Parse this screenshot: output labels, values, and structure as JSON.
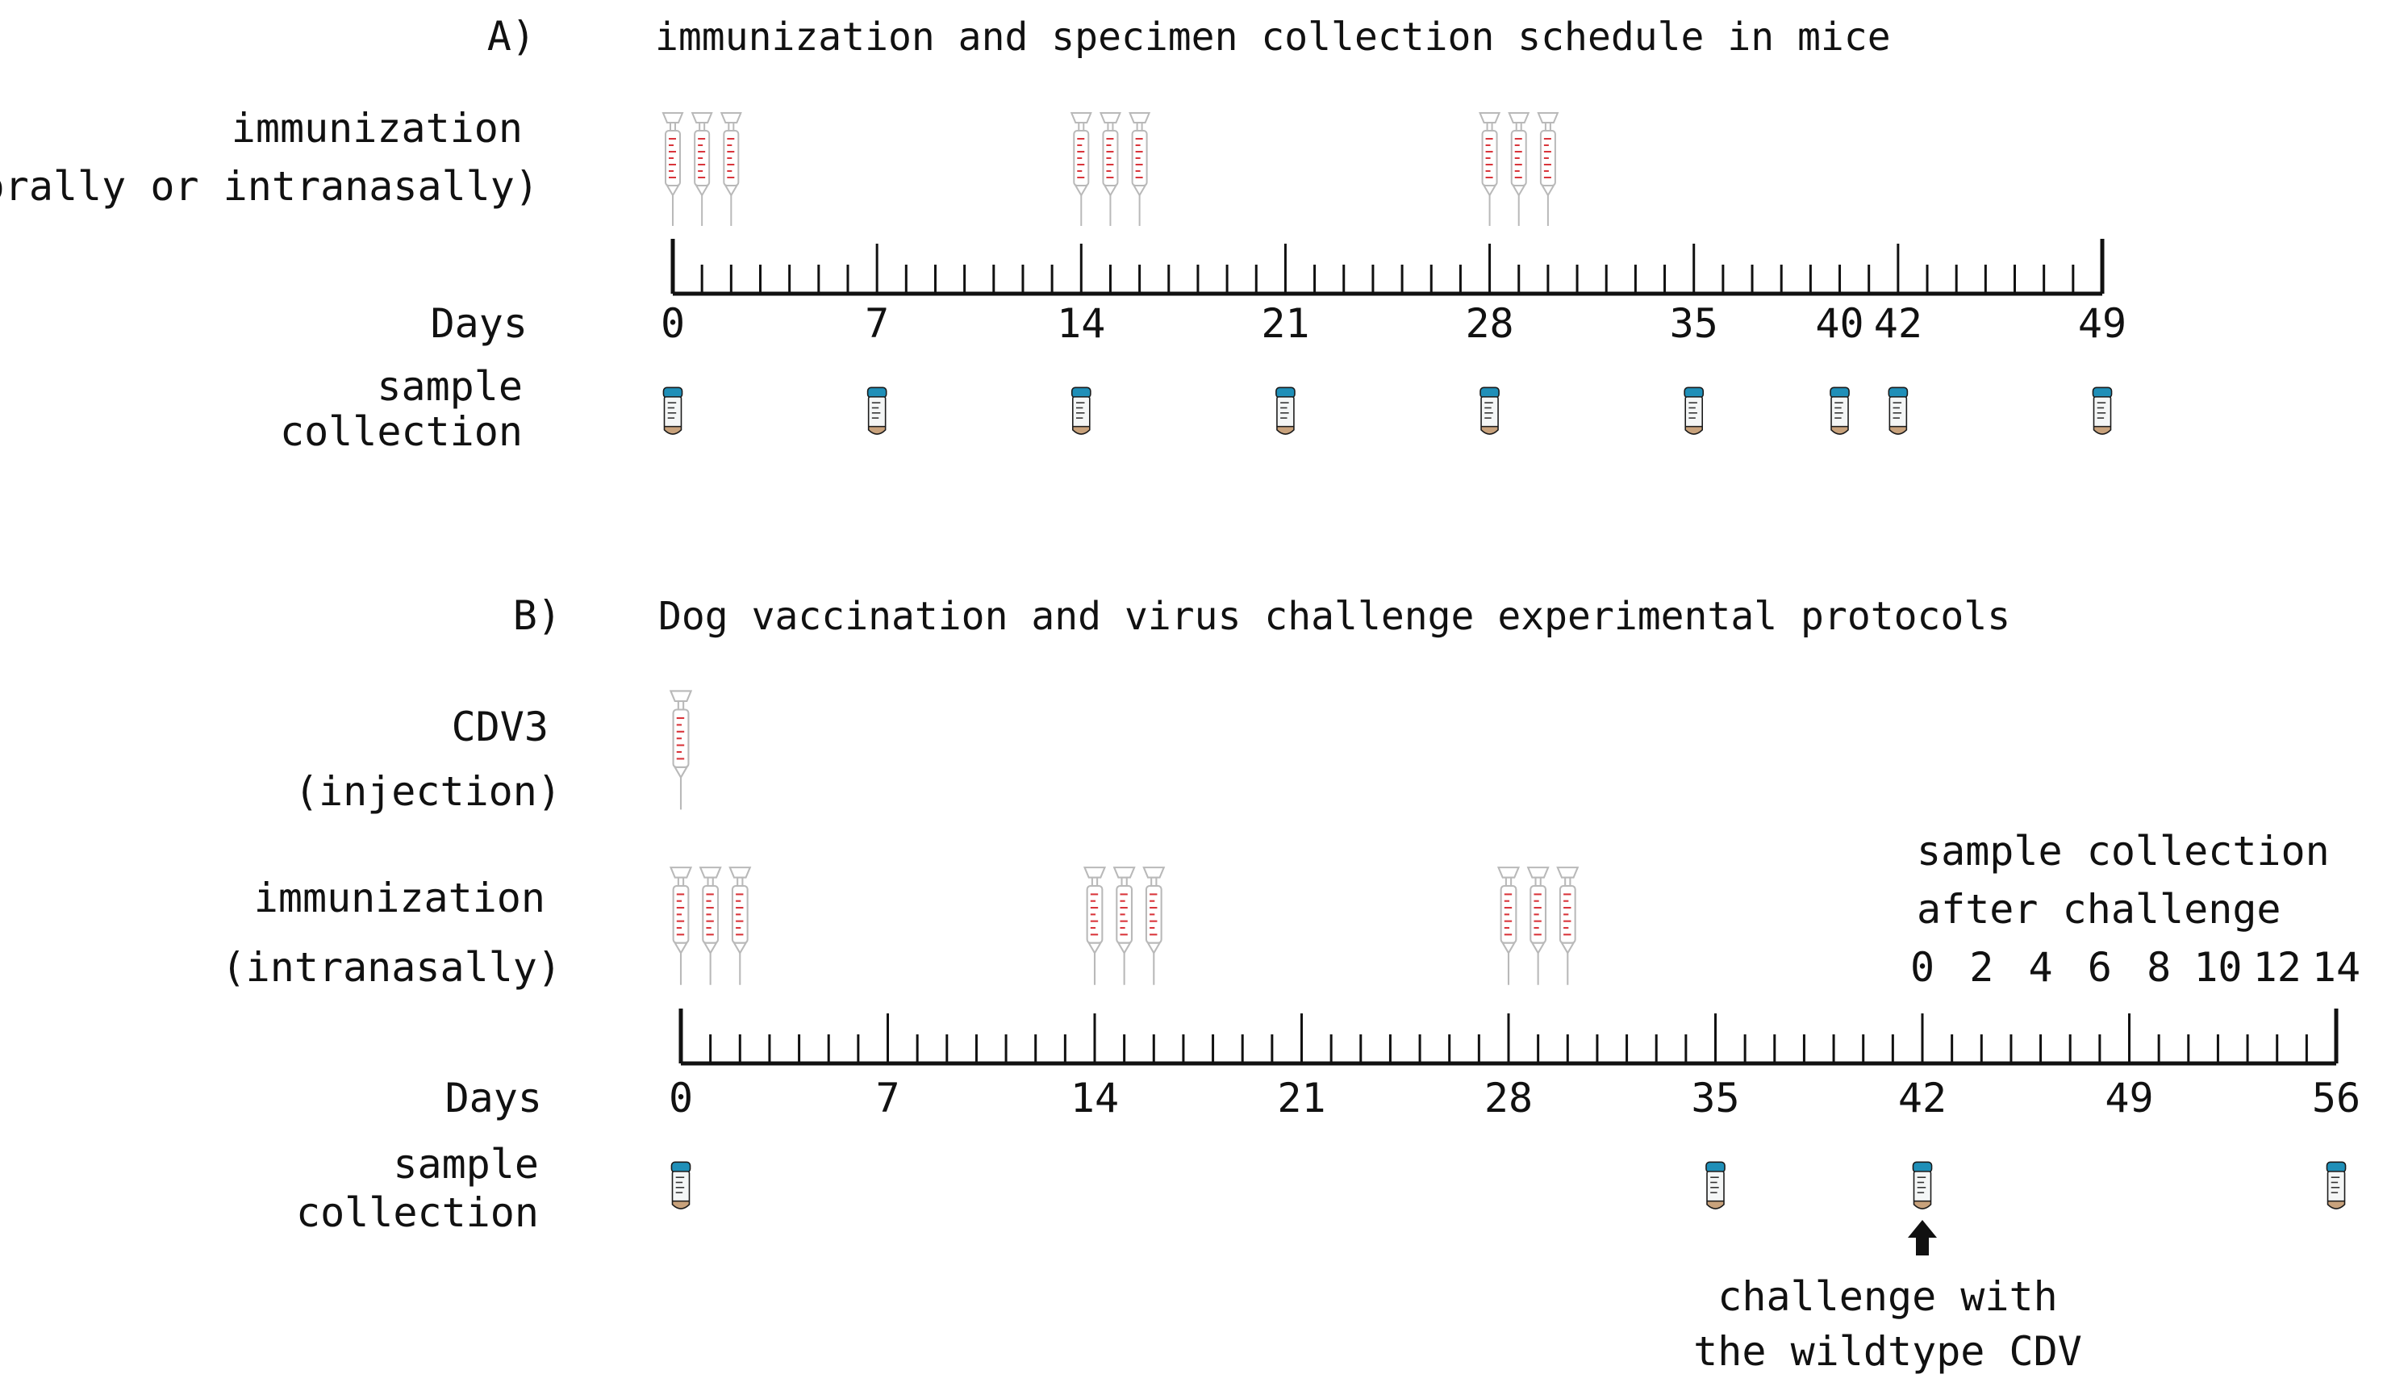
{
  "colors": {
    "ink": "#111111",
    "syringe_marks": "#d9353b",
    "syringe_outline": "#b9b9b9",
    "tube_cap": "#1f8fb8",
    "tube_bottom": "#c8a27c"
  },
  "icons": {
    "syringe": "syringe-icon",
    "tube": "sample-tube-icon",
    "arrow": "arrow-up-icon"
  },
  "panel_a": {
    "letter": "A)",
    "title": "immunization and specimen collection schedule in mice",
    "immunization_label_1": "immunization",
    "immunization_label_2": "(orally or intranasally)",
    "days_label": "Days",
    "sample_label_1": "sample",
    "sample_label_2": "collection",
    "timeline_end_day": 49,
    "day_ticks": [
      {
        "day": 0,
        "label": "0"
      },
      {
        "day": 7,
        "label": "7"
      },
      {
        "day": 14,
        "label": "14"
      },
      {
        "day": 21,
        "label": "21"
      },
      {
        "day": 28,
        "label": "28"
      },
      {
        "day": 35,
        "label": "35"
      },
      {
        "day": 40,
        "label": "40"
      },
      {
        "day": 42,
        "label": "42"
      },
      {
        "day": 49,
        "label": "49"
      }
    ],
    "major_tick_days": [
      0,
      7,
      14,
      21,
      28,
      35,
      42,
      49
    ],
    "immunization_days": [
      0,
      1,
      2,
      14,
      15,
      16,
      28,
      29,
      30
    ],
    "sample_days": [
      0,
      7,
      14,
      21,
      28,
      35,
      40,
      42,
      49
    ]
  },
  "panel_b": {
    "letter": "B)",
    "title": "Dog vaccination and virus challenge experimental protocols",
    "injection_label_1": "CDV3",
    "injection_label_2": "(injection)",
    "injection_days": [
      0
    ],
    "immunization_label_1": "immunization",
    "immunization_label_2": "(intranasally)",
    "immunization_days": [
      0,
      1,
      2,
      14,
      15,
      16,
      28,
      29,
      30
    ],
    "days_label": "Days",
    "sample_label_1": "sample",
    "sample_label_2": "collection",
    "timeline_end_day": 56,
    "day_ticks": [
      {
        "day": 0,
        "label": "0"
      },
      {
        "day": 7,
        "label": "7"
      },
      {
        "day": 14,
        "label": "14"
      },
      {
        "day": 21,
        "label": "21"
      },
      {
        "day": 28,
        "label": "28"
      },
      {
        "day": 35,
        "label": "35"
      },
      {
        "day": 42,
        "label": "42"
      },
      {
        "day": 49,
        "label": "49"
      },
      {
        "day": 56,
        "label": "56"
      }
    ],
    "major_tick_days": [
      0,
      7,
      14,
      21,
      28,
      35,
      42,
      49,
      56
    ],
    "sample_days": [
      0,
      35,
      42,
      56
    ],
    "after_challenge_label_1": "sample  collection",
    "after_challenge_label_2": "after challenge",
    "after_challenge_ticks": [
      {
        "day": 0,
        "label": "0"
      },
      {
        "day": 2,
        "label": "2"
      },
      {
        "day": 4,
        "label": "4"
      },
      {
        "day": 6,
        "label": "6"
      },
      {
        "day": 8,
        "label": "8"
      },
      {
        "day": 10,
        "label": "10"
      },
      {
        "day": 12,
        "label": "12"
      },
      {
        "day": 14,
        "label": "14"
      }
    ],
    "challenge_day": 42,
    "challenge_label_1": "challenge with",
    "challenge_label_2": "the wildtype CDV"
  }
}
